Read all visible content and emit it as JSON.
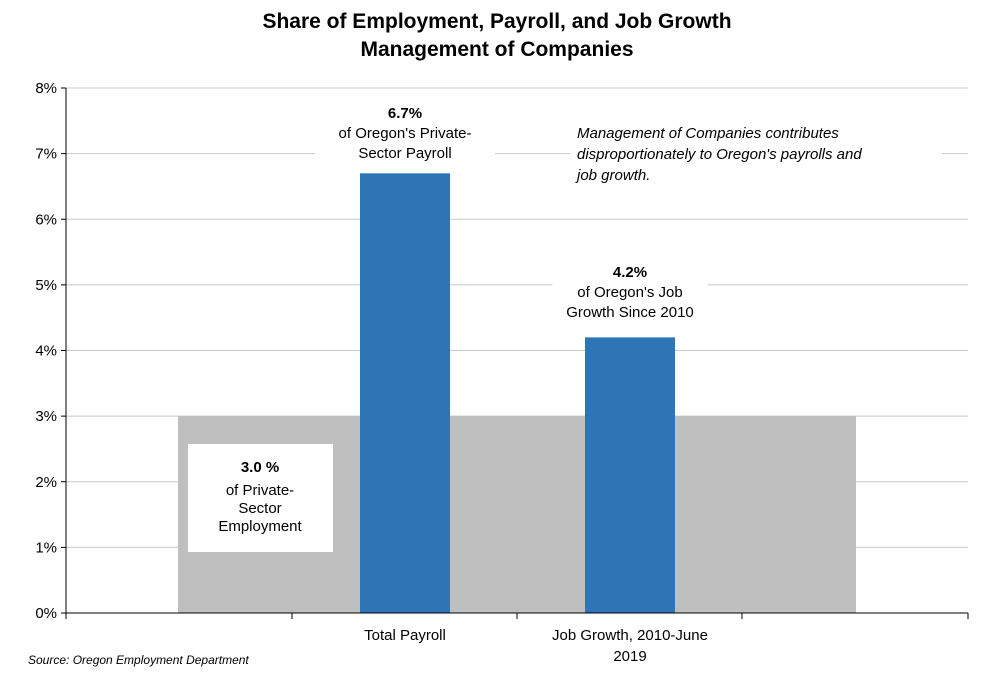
{
  "chart_data": {
    "type": "bar",
    "title": "Share of Employment, Payroll, and Job Growth",
    "subtitle": "Management of Companies",
    "categories": [
      "Total Payroll",
      "Job Growth, 2010-June 2019"
    ],
    "category_lines": [
      [
        "Total Payroll"
      ],
      [
        "Job Growth, 2010-June",
        "2019"
      ]
    ],
    "values": [
      6.7,
      4.2
    ],
    "background_value": 3.0,
    "ylim": [
      0,
      8
    ],
    "yticks": [
      "0%",
      "1%",
      "2%",
      "3%",
      "4%",
      "5%",
      "6%",
      "7%",
      "8%"
    ],
    "grid": true,
    "bar_color": "#2e75b6",
    "background_color": "#bfbfbf",
    "annotations": {
      "payroll": {
        "value": "6.7%",
        "lines": [
          "of Oregon's Private-",
          "Sector Payroll"
        ]
      },
      "growth": {
        "value": "4.2%",
        "lines": [
          "of Oregon's Job",
          "Growth Since 2010"
        ]
      },
      "employment": {
        "value": "3.0 %",
        "lines": [
          "of Private-",
          "Sector",
          "Employment"
        ]
      },
      "note": [
        "Management of Companies contributes",
        "disproportionately to Oregon's payrolls and",
        "job growth."
      ]
    },
    "source": "Source: Oregon Employment Department"
  }
}
